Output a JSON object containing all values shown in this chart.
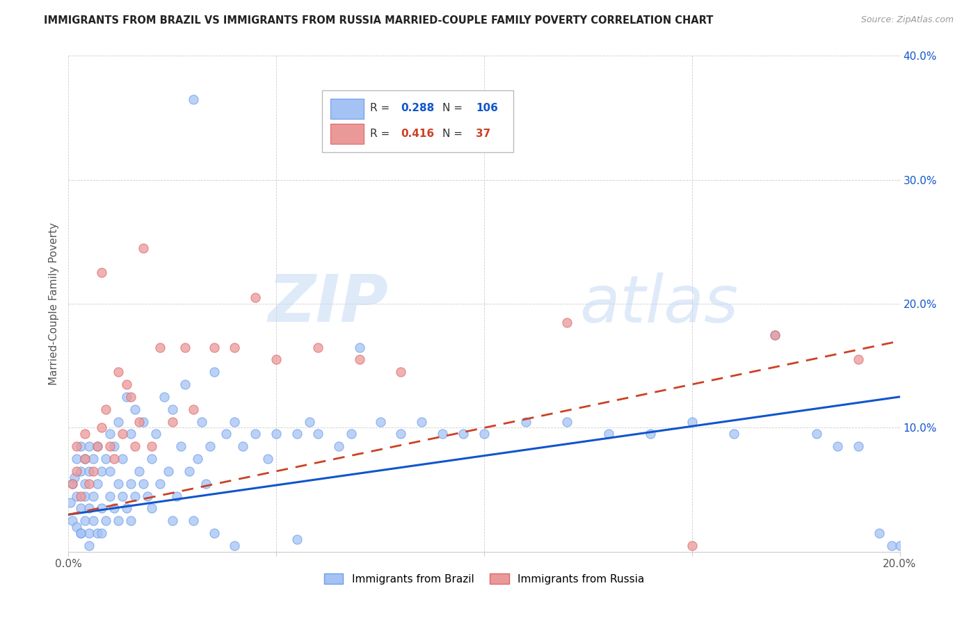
{
  "title": "IMMIGRANTS FROM BRAZIL VS IMMIGRANTS FROM RUSSIA MARRIED-COUPLE FAMILY POVERTY CORRELATION CHART",
  "source": "Source: ZipAtlas.com",
  "ylabel": "Married-Couple Family Poverty",
  "watermark_zip": "ZIP",
  "watermark_atlas": "atlas",
  "brazil_color": "#a4c2f4",
  "russia_color": "#ea9999",
  "brazil_edge_color": "#6d9eeb",
  "russia_edge_color": "#e06666",
  "brazil_line_color": "#1155cc",
  "russia_line_color": "#cc4125",
  "brazil_R": 0.288,
  "brazil_N": 106,
  "russia_R": 0.416,
  "russia_N": 37,
  "xlim": [
    0.0,
    0.2
  ],
  "ylim": [
    0.0,
    0.4
  ],
  "xtick_positions": [
    0.0,
    0.05,
    0.1,
    0.15,
    0.2
  ],
  "xtick_labels_show": [
    "0.0%",
    "",
    "",
    "",
    "20.0%"
  ],
  "ytick_positions": [
    0.0,
    0.1,
    0.2,
    0.3,
    0.4
  ],
  "ytick_labels_show": [
    "",
    "10.0%",
    "20.0%",
    "30.0%",
    "40.0%"
  ],
  "legend_brazil": "Immigrants from Brazil",
  "legend_russia": "Immigrants from Russia",
  "brazil_x": [
    0.0005,
    0.001,
    0.001,
    0.0015,
    0.002,
    0.002,
    0.002,
    0.003,
    0.003,
    0.003,
    0.003,
    0.004,
    0.004,
    0.004,
    0.004,
    0.005,
    0.005,
    0.005,
    0.005,
    0.006,
    0.006,
    0.006,
    0.007,
    0.007,
    0.007,
    0.008,
    0.008,
    0.009,
    0.009,
    0.01,
    0.01,
    0.01,
    0.011,
    0.011,
    0.012,
    0.012,
    0.013,
    0.013,
    0.014,
    0.014,
    0.015,
    0.015,
    0.016,
    0.016,
    0.017,
    0.018,
    0.018,
    0.019,
    0.02,
    0.021,
    0.022,
    0.023,
    0.024,
    0.025,
    0.026,
    0.027,
    0.028,
    0.029,
    0.03,
    0.031,
    0.032,
    0.033,
    0.034,
    0.035,
    0.038,
    0.04,
    0.042,
    0.045,
    0.048,
    0.05,
    0.055,
    0.058,
    0.06,
    0.065,
    0.068,
    0.07,
    0.075,
    0.08,
    0.085,
    0.09,
    0.095,
    0.1,
    0.11,
    0.12,
    0.13,
    0.14,
    0.15,
    0.16,
    0.17,
    0.18,
    0.185,
    0.19,
    0.195,
    0.198,
    0.2,
    0.003,
    0.005,
    0.008,
    0.012,
    0.015,
    0.02,
    0.025,
    0.03,
    0.035,
    0.04,
    0.055
  ],
  "brazil_y": [
    0.04,
    0.055,
    0.025,
    0.06,
    0.02,
    0.045,
    0.075,
    0.015,
    0.035,
    0.065,
    0.085,
    0.025,
    0.045,
    0.055,
    0.075,
    0.015,
    0.035,
    0.065,
    0.085,
    0.025,
    0.045,
    0.075,
    0.015,
    0.055,
    0.085,
    0.035,
    0.065,
    0.025,
    0.075,
    0.045,
    0.065,
    0.095,
    0.035,
    0.085,
    0.055,
    0.105,
    0.045,
    0.075,
    0.035,
    0.125,
    0.055,
    0.095,
    0.045,
    0.115,
    0.065,
    0.055,
    0.105,
    0.045,
    0.075,
    0.095,
    0.055,
    0.125,
    0.065,
    0.115,
    0.045,
    0.085,
    0.135,
    0.065,
    0.365,
    0.075,
    0.105,
    0.055,
    0.085,
    0.145,
    0.095,
    0.105,
    0.085,
    0.095,
    0.075,
    0.095,
    0.095,
    0.105,
    0.095,
    0.085,
    0.095,
    0.165,
    0.105,
    0.095,
    0.105,
    0.095,
    0.095,
    0.095,
    0.105,
    0.105,
    0.095,
    0.095,
    0.105,
    0.095,
    0.175,
    0.095,
    0.085,
    0.085,
    0.015,
    0.005,
    0.005,
    0.015,
    0.005,
    0.015,
    0.025,
    0.025,
    0.035,
    0.025,
    0.025,
    0.015,
    0.005,
    0.01
  ],
  "russia_x": [
    0.001,
    0.002,
    0.002,
    0.003,
    0.004,
    0.004,
    0.005,
    0.006,
    0.007,
    0.008,
    0.009,
    0.01,
    0.011,
    0.012,
    0.013,
    0.014,
    0.015,
    0.016,
    0.017,
    0.018,
    0.02,
    0.022,
    0.025,
    0.028,
    0.03,
    0.035,
    0.04,
    0.045,
    0.05,
    0.06,
    0.07,
    0.08,
    0.12,
    0.15,
    0.17,
    0.19,
    0.008
  ],
  "russia_y": [
    0.055,
    0.065,
    0.085,
    0.045,
    0.075,
    0.095,
    0.055,
    0.065,
    0.085,
    0.225,
    0.115,
    0.085,
    0.075,
    0.145,
    0.095,
    0.135,
    0.125,
    0.085,
    0.105,
    0.245,
    0.085,
    0.165,
    0.105,
    0.165,
    0.115,
    0.165,
    0.165,
    0.205,
    0.155,
    0.165,
    0.155,
    0.145,
    0.185,
    0.005,
    0.175,
    0.155,
    0.1
  ],
  "brazil_line_y0": 0.03,
  "brazil_line_y1": 0.125,
  "russia_line_y0": 0.03,
  "russia_line_y1": 0.17
}
